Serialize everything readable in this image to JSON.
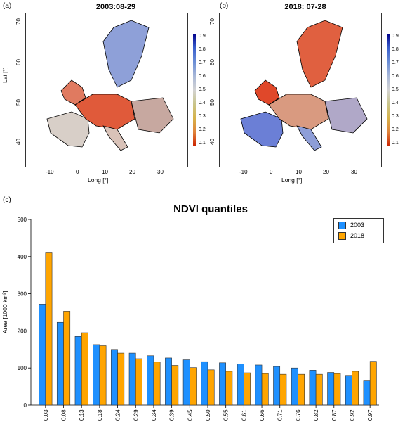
{
  "panel_a": {
    "label": "(a)",
    "title": "2003:08-29",
    "xlabel": "Long [°]",
    "ylabel": "Lat [°]",
    "xticks": [
      "-10",
      "0",
      "10",
      "20",
      "30"
    ],
    "yticks": [
      "70",
      "60",
      "50",
      "40"
    ]
  },
  "panel_b": {
    "label": "(b)",
    "title": "2018: 07-28",
    "xlabel": "Long [°]",
    "xticks": [
      "-10",
      "0",
      "10",
      "20",
      "30"
    ],
    "yticks": [
      "70",
      "60",
      "50",
      "40"
    ]
  },
  "colorbar": {
    "ticks": [
      "0.9",
      "0.8",
      "0.7",
      "0.6",
      "0.5",
      "0.4",
      "0.3",
      "0.2",
      "0.1"
    ],
    "colors": [
      "#00008b",
      "#3a5fcd",
      "#6b8ed6",
      "#a9b8d8",
      "#d3d3d3",
      "#c9c58a",
      "#d6b34a",
      "#e0823a",
      "#cc2200"
    ]
  },
  "panel_c": {
    "label": "(c)"
  },
  "chart_data": {
    "type": "bar",
    "title": "NDVI quantiles",
    "ylabel": "Area [1000 km²]",
    "xlabel": "",
    "ylim": [
      0,
      500
    ],
    "yticks": [
      "0",
      "100",
      "200",
      "300",
      "400",
      "500"
    ],
    "legend_position": "top-right",
    "categories": [
      "0.03",
      "0.08",
      "0.13",
      "0.18",
      "0.24",
      "0.29",
      "0.34",
      "0.39",
      "0.45",
      "0.50",
      "0.55",
      "0.61",
      "0.66",
      "0.71",
      "0.76",
      "0.82",
      "0.87",
      "0.92",
      "0.97"
    ],
    "series": [
      {
        "name": "2003",
        "color": "#1e90ff",
        "values": [
          272,
          223,
          185,
          163,
          150,
          140,
          133,
          127,
          122,
          117,
          114,
          111,
          108,
          104,
          100,
          94,
          88,
          80,
          67
        ]
      },
      {
        "name": "2018",
        "color": "#ffa500",
        "values": [
          410,
          253,
          195,
          160,
          140,
          125,
          116,
          107,
          101,
          95,
          91,
          87,
          85,
          83,
          83,
          83,
          85,
          91,
          118
        ]
      }
    ]
  }
}
